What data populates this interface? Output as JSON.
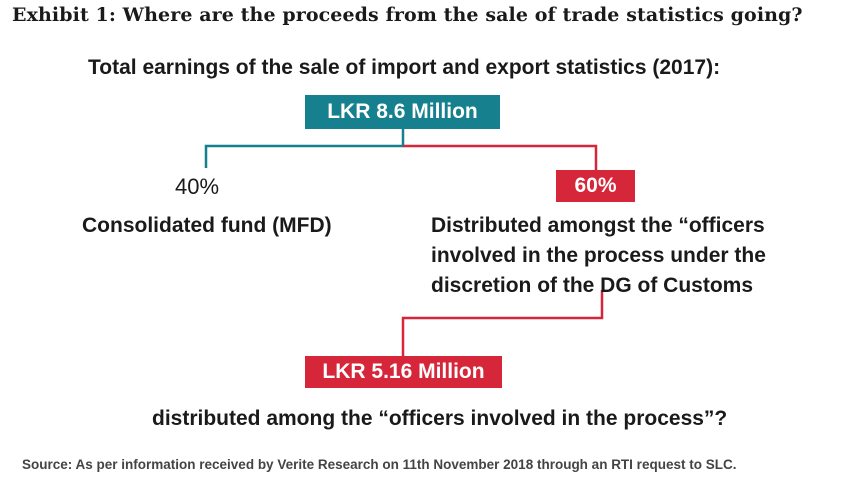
{
  "exhibit_title": "Exhibit 1: Where are the proceeds from the sale of trade statistics going?",
  "subtitle": "Total earnings of the sale of import and export statistics (2017):",
  "total": {
    "label": "LKR 8.6 Million"
  },
  "left_branch": {
    "percent": "40%",
    "description": "Consolidated fund (MFD)"
  },
  "right_branch": {
    "percent": "60%",
    "description": "Distributed amongst the “officers involved in the process under the discretion of the DG of Customs"
  },
  "distributed_total": {
    "label": "LKR 5.16 Million",
    "description": "distributed among the “officers involved in the process”?"
  },
  "source": "Source: As per information received by Verite Research on 11th November 2018 through an RTI request to SLC.",
  "colors": {
    "teal": "#17808f",
    "red": "#d6273a",
    "text": "#1a1a1a"
  }
}
